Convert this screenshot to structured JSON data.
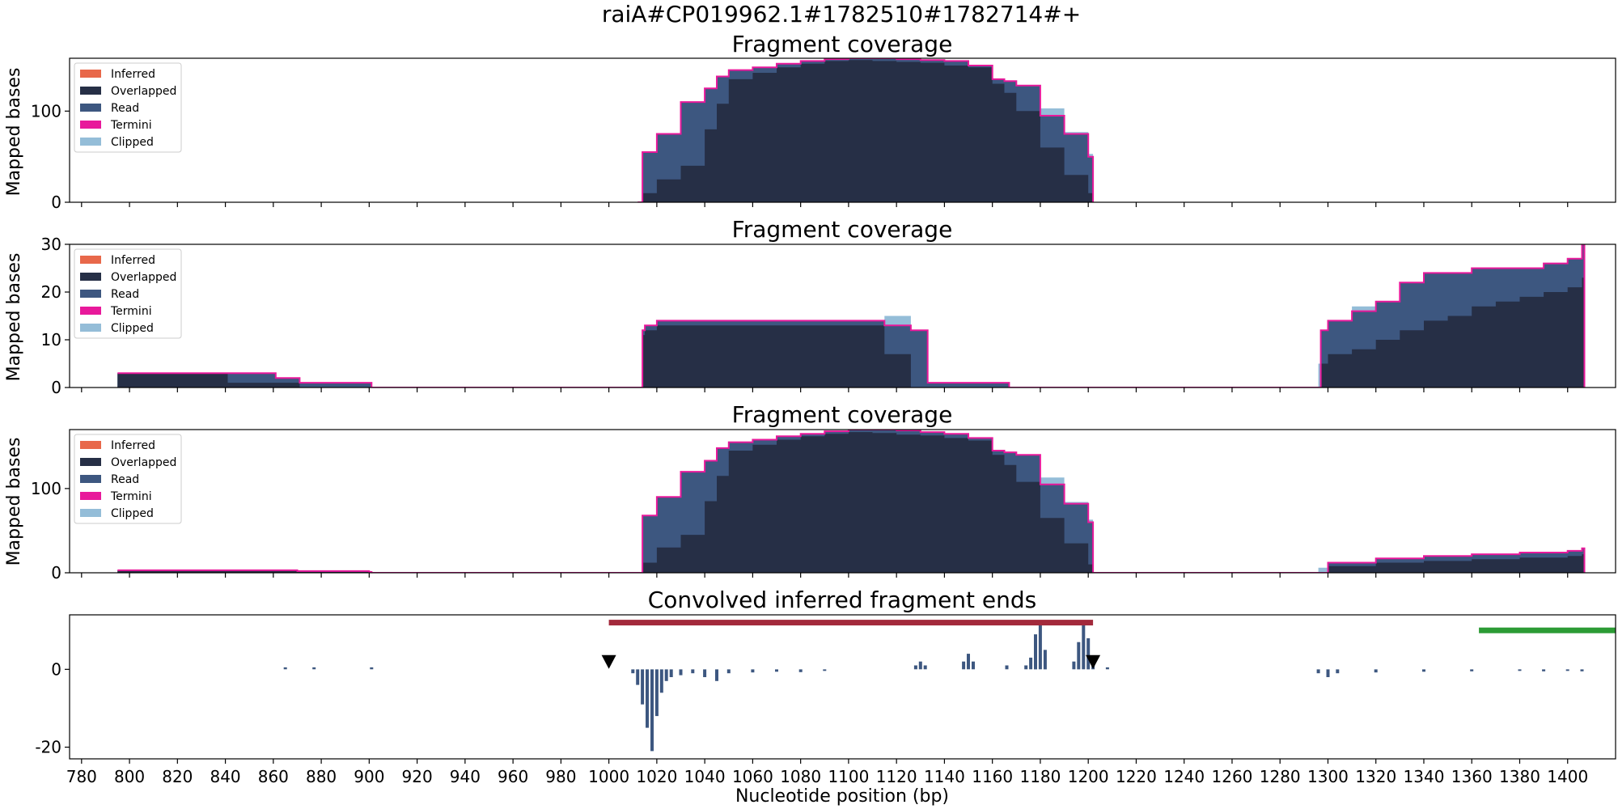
{
  "figure": {
    "suptitle": "raiA#CP019962.1#1782510#1782714#+",
    "xlabel": "Nucleotide position (bp)",
    "xticks": [
      780,
      800,
      820,
      840,
      860,
      880,
      900,
      920,
      940,
      960,
      980,
      1000,
      1020,
      1040,
      1060,
      1080,
      1100,
      1120,
      1140,
      1160,
      1180,
      1200,
      1220,
      1240,
      1260,
      1280,
      1300,
      1320,
      1340,
      1360,
      1380,
      1400
    ],
    "xlim": [
      775,
      1420
    ]
  },
  "colors": {
    "inferred": "#e8684a",
    "overlapped": "#262f46",
    "read": "#3d5780",
    "termini": "#e8199b",
    "clipped": "#94bdd8",
    "annotation_red": "#a3293b",
    "annotation_green": "#2c9b35",
    "marker": "#000000"
  },
  "chart_data": [
    {
      "type": "area",
      "title": "Fragment coverage",
      "ylabel": "Mapped bases",
      "ylim": [
        0,
        158
      ],
      "yticks": [
        0,
        100
      ],
      "legend_position": "upper-left",
      "legend": [
        "Inferred",
        "Overlapped",
        "Read",
        "Termini",
        "Clipped"
      ],
      "x": [
        1012,
        1014,
        1020,
        1030,
        1040,
        1045,
        1050,
        1060,
        1070,
        1080,
        1090,
        1100,
        1110,
        1120,
        1130,
        1140,
        1150,
        1160,
        1165,
        1170,
        1180,
        1190,
        1200,
        1202
      ],
      "series": [
        {
          "name": "Overlapped",
          "values": [
            0,
            10,
            25,
            40,
            80,
            108,
            135,
            142,
            148,
            152,
            155,
            156,
            155,
            154,
            153,
            150,
            148,
            130,
            120,
            100,
            60,
            30,
            10,
            0
          ]
        },
        {
          "name": "Read",
          "values": [
            0,
            55,
            75,
            110,
            125,
            138,
            145,
            148,
            152,
            155,
            157,
            158,
            158,
            157,
            156,
            155,
            150,
            135,
            133,
            128,
            95,
            75,
            50,
            0
          ]
        },
        {
          "name": "Clipped",
          "values": [
            0,
            0,
            0,
            0,
            0,
            0,
            0,
            0,
            0,
            0,
            0,
            0,
            0,
            0,
            0,
            0,
            0,
            0,
            0,
            0,
            8,
            2,
            3,
            0
          ]
        }
      ]
    },
    {
      "type": "area",
      "title": "Fragment coverage",
      "ylabel": "Mapped bases",
      "ylim": [
        0,
        30
      ],
      "yticks": [
        0,
        10,
        20,
        30
      ],
      "legend_position": "upper-left",
      "legend": [
        "Inferred",
        "Overlapped",
        "Read",
        "Termini",
        "Clipped"
      ],
      "x": [
        795,
        840,
        841,
        860,
        861,
        870,
        871,
        900,
        901,
        1013,
        1014,
        1015,
        1020,
        1030,
        1114,
        1115,
        1125,
        1126,
        1132,
        1133,
        1166,
        1167,
        1296,
        1297,
        1300,
        1310,
        1320,
        1330,
        1340,
        1350,
        1360,
        1370,
        1380,
        1390,
        1400,
        1406,
        1407
      ],
      "series": [
        {
          "name": "Overlapped",
          "values": [
            3,
            3,
            1,
            1,
            1,
            1,
            0,
            0,
            0,
            0,
            11,
            12,
            13,
            13,
            13,
            7,
            7,
            0,
            0,
            0,
            0,
            0,
            0,
            5,
            7,
            8,
            10,
            12,
            14,
            15,
            17,
            18,
            19,
            20,
            21,
            23,
            0
          ]
        },
        {
          "name": "Read",
          "values": [
            3,
            3,
            3,
            3,
            2,
            2,
            1,
            1,
            0,
            0,
            12,
            13,
            14,
            14,
            14,
            13,
            13,
            12,
            12,
            1,
            1,
            0,
            0,
            12,
            14,
            16,
            18,
            22,
            24,
            24,
            25,
            25,
            25,
            26,
            27,
            30,
            0
          ]
        },
        {
          "name": "Clipped",
          "values": [
            0,
            0,
            0,
            0,
            0,
            0,
            0,
            0,
            0,
            0,
            0,
            0,
            0,
            0,
            0,
            2,
            2,
            0,
            0,
            0,
            0,
            0,
            5,
            0,
            0,
            1,
            0,
            0,
            0,
            0,
            0,
            0,
            0,
            0,
            0,
            0,
            0
          ]
        }
      ]
    },
    {
      "type": "area",
      "title": "Fragment coverage",
      "ylabel": "Mapped bases",
      "ylim": [
        0,
        170
      ],
      "yticks": [
        0,
        100
      ],
      "legend_position": "upper-left",
      "legend": [
        "Inferred",
        "Overlapped",
        "Read",
        "Termini",
        "Clipped"
      ],
      "x": [
        795,
        840,
        870,
        900,
        901,
        1012,
        1014,
        1020,
        1030,
        1040,
        1045,
        1050,
        1060,
        1070,
        1080,
        1090,
        1100,
        1110,
        1120,
        1130,
        1140,
        1150,
        1160,
        1165,
        1170,
        1180,
        1190,
        1200,
        1202,
        1296,
        1300,
        1320,
        1340,
        1360,
        1380,
        1400,
        1406,
        1407
      ],
      "series": [
        {
          "name": "Overlapped",
          "values": [
            3,
            3,
            1,
            0,
            0,
            0,
            12,
            30,
            45,
            85,
            115,
            145,
            152,
            158,
            162,
            165,
            167,
            166,
            164,
            163,
            160,
            157,
            140,
            128,
            108,
            65,
            35,
            10,
            0,
            0,
            8,
            12,
            14,
            16,
            18,
            20,
            22,
            0
          ]
        },
        {
          "name": "Read",
          "values": [
            3,
            3,
            2,
            1,
            0,
            0,
            68,
            90,
            120,
            133,
            148,
            155,
            158,
            162,
            165,
            168,
            170,
            170,
            169,
            167,
            165,
            160,
            145,
            143,
            140,
            105,
            82,
            60,
            0,
            0,
            12,
            17,
            20,
            22,
            24,
            26,
            29,
            0
          ]
        },
        {
          "name": "Clipped",
          "values": [
            0,
            0,
            0,
            0,
            0,
            0,
            0,
            0,
            0,
            0,
            0,
            0,
            0,
            0,
            0,
            0,
            0,
            0,
            0,
            0,
            0,
            0,
            0,
            0,
            0,
            8,
            2,
            3,
            0,
            6,
            0,
            0,
            0,
            0,
            0,
            0,
            0,
            0
          ]
        }
      ]
    },
    {
      "type": "bar",
      "title": "Convolved inferred fragment ends",
      "ylabel": "",
      "ylim": [
        -23,
        14
      ],
      "yticks": [
        -20,
        0
      ],
      "intervals": [
        {
          "start": 1000,
          "end": 1202,
          "y": 12,
          "color": "annotation_red"
        },
        {
          "start": 1363,
          "end": 1420,
          "y": 10,
          "color": "annotation_green"
        }
      ],
      "markers": [
        {
          "x": 1000,
          "y": 2
        },
        {
          "x": 1202,
          "y": 2
        }
      ],
      "x": [
        865,
        877,
        901,
        1010,
        1012,
        1014,
        1016,
        1018,
        1020,
        1022,
        1024,
        1026,
        1030,
        1035,
        1040,
        1045,
        1050,
        1060,
        1070,
        1080,
        1090,
        1128,
        1130,
        1132,
        1148,
        1150,
        1152,
        1166,
        1174,
        1176,
        1178,
        1180,
        1182,
        1194,
        1196,
        1198,
        1200,
        1202,
        1208,
        1296,
        1300,
        1304,
        1320,
        1340,
        1360,
        1380,
        1390,
        1400,
        1406
      ],
      "values": [
        0.5,
        0.5,
        0.5,
        -1,
        -4,
        -9,
        -15,
        -21,
        -12,
        -6,
        -3,
        -2,
        -1.5,
        -1,
        -2,
        -3,
        -1,
        -0.8,
        -0.6,
        -0.7,
        -0.4,
        1,
        2,
        1,
        2,
        4,
        2,
        1,
        1,
        3,
        9,
        12,
        5,
        2,
        7,
        12,
        8,
        3,
        0.5,
        -1,
        -2,
        -1,
        -0.8,
        -0.6,
        -0.5,
        -0.4,
        -0.5,
        -0.4,
        -0.5
      ]
    }
  ]
}
